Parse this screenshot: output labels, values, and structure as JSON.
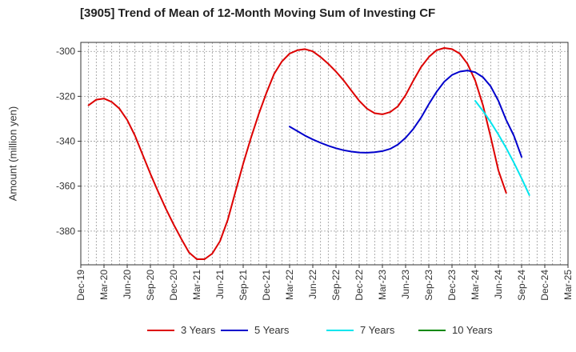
{
  "chart_data": {
    "type": "line",
    "title": "[3905]  Trend of Mean of 12-Month Moving Sum of Investing CF",
    "ylabel": "Amount (million yen)",
    "xlabel": "",
    "ylim": [
      -395,
      -296
    ],
    "yticks": [
      -300,
      -320,
      -340,
      -360,
      -380
    ],
    "x_ticks": [
      "Dec-19",
      "Mar-20",
      "Jun-20",
      "Sep-20",
      "Dec-20",
      "Mar-21",
      "Jun-21",
      "Sep-21",
      "Dec-21",
      "Mar-22",
      "Jun-22",
      "Sep-22",
      "Dec-22",
      "Mar-23",
      "Jun-23",
      "Sep-23",
      "Dec-23",
      "Mar-24",
      "Jun-24",
      "Sep-24",
      "Dec-24",
      "Mar-25"
    ],
    "grid": true,
    "legend_position": "bottom",
    "series": [
      {
        "name": "3 Years",
        "color": "#dd0000",
        "start_index": 1,
        "values": [
          -324,
          -321.5,
          -321,
          -322.5,
          -325.5,
          -330.5,
          -337.5,
          -346,
          -354.5,
          -362.5,
          -370,
          -377,
          -383.5,
          -389.5,
          -392.5,
          -392.5,
          -390,
          -384.5,
          -375,
          -362.5,
          -350,
          -338.5,
          -328,
          -318.5,
          -310,
          -304.5,
          -301,
          -299.5,
          -299,
          -300,
          -302.5,
          -305.5,
          -309,
          -313,
          -317.5,
          -322,
          -325.5,
          -327.5,
          -328,
          -327,
          -324.5,
          -319.5,
          -313,
          -307,
          -302.5,
          -299.5,
          -298.5,
          -299,
          -301,
          -305.5,
          -313,
          -324,
          -338,
          -353,
          -363
        ]
      },
      {
        "name": "5 Years",
        "color": "#0000cc",
        "start_index": 27,
        "values": [
          -333.5,
          -335.5,
          -337.5,
          -339.2,
          -340.7,
          -342,
          -343.1,
          -344,
          -344.6,
          -345,
          -345.1,
          -344.9,
          -344.4,
          -343.4,
          -341.5,
          -338.5,
          -334.5,
          -329.5,
          -323.5,
          -318,
          -313.5,
          -310.5,
          -309,
          -308.5,
          -309.3,
          -311.5,
          -315.5,
          -322,
          -330.5,
          -337.5,
          -347
        ]
      },
      {
        "name": "7 Years",
        "color": "#00e5ee",
        "start_index": 51,
        "values": [
          -322,
          -326.5,
          -331.5,
          -337,
          -343,
          -349.5,
          -356.5,
          -364
        ]
      },
      {
        "name": "10 Years",
        "color": "#008800",
        "start_index": 0,
        "values": []
      }
    ]
  }
}
